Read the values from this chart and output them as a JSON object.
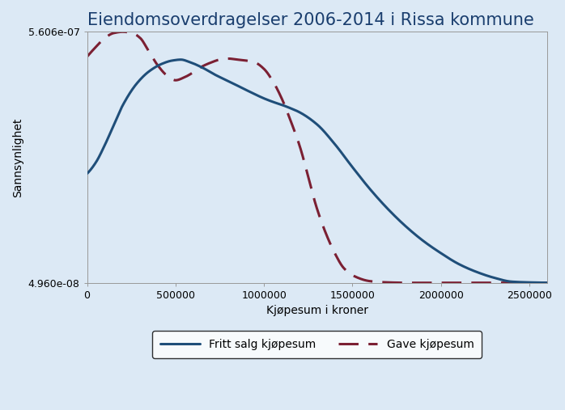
{
  "title": "Eiendomsoverdragelser 2006-2014 i Rissa kommune",
  "xlabel": "Kjøpesum i kroner",
  "ylabel": "Sannsynlighet",
  "background_color": "#dce9f5",
  "plot_bg_color": "#dce9f5",
  "ymin": 4.96e-08,
  "ymax": 5.606e-07,
  "xmin": 0,
  "xmax": 2600000,
  "line1_color": "#1f4e79",
  "line2_color": "#7b2033",
  "legend_line1": "Fritt salg kjøpesum",
  "legend_line2": "Gave kjøpesum",
  "title_fontsize": 15,
  "label_fontsize": 10,
  "fritt_salg_points_x": [
    0,
    50000,
    100000,
    150000,
    200000,
    280000,
    350000,
    420000,
    480000,
    530000,
    580000,
    650000,
    730000,
    800000,
    900000,
    1000000,
    1050000,
    1100000,
    1150000,
    1200000,
    1300000,
    1400000,
    1500000,
    1600000,
    1700000,
    1800000,
    1900000,
    2000000,
    2100000,
    2200000,
    2300000,
    2400000,
    2500000,
    2600000
  ],
  "fritt_salg_points_y": [
    2.72e-07,
    2.95e-07,
    3.3e-07,
    3.7e-07,
    4.1e-07,
    4.55e-07,
    4.8e-07,
    4.95e-07,
    5.02e-07,
    5.04e-07,
    4.99e-07,
    4.88e-07,
    4.72e-07,
    4.6e-07,
    4.42e-07,
    4.25e-07,
    4.18e-07,
    4.12e-07,
    4.05e-07,
    3.97e-07,
    3.72e-07,
    3.32e-07,
    2.85e-07,
    2.4e-07,
    2e-07,
    1.65e-07,
    1.35e-07,
    1.1e-07,
    8.8e-08,
    7.2e-08,
    6e-08,
    5.2e-08,
    5.05e-08,
    4.98e-08
  ],
  "gave_points_x": [
    0,
    50000,
    100000,
    150000,
    200000,
    250000,
    300000,
    350000,
    400000,
    450000,
    500000,
    550000,
    600000,
    650000,
    700000,
    750000,
    800000,
    850000,
    900000,
    950000,
    1000000,
    1050000,
    1100000,
    1150000,
    1200000,
    1300000,
    1350000,
    1400000,
    1450000,
    1500000,
    1600000,
    1700000,
    1800000,
    1900000,
    2000000,
    2100000,
    2200000,
    2300000,
    2400000,
    2500000,
    2600000
  ],
  "gave_points_y": [
    5.1e-07,
    5.3e-07,
    5.48e-07,
    5.58e-07,
    5.606e-07,
    5.59e-07,
    5.48e-07,
    5.2e-07,
    4.92e-07,
    4.72e-07,
    4.62e-07,
    4.68e-07,
    4.78e-07,
    4.9e-07,
    4.98e-07,
    5.04e-07,
    5.06e-07,
    5.04e-07,
    5.02e-07,
    4.98e-07,
    4.85e-07,
    4.6e-07,
    4.25e-07,
    3.8e-07,
    3.3e-07,
    2e-07,
    1.5e-07,
    1.1e-07,
    8e-08,
    6.5e-08,
    5.3e-08,
    5.05e-08,
    4.97e-08,
    4.965e-08,
    4.968e-08,
    4.972e-08,
    4.976e-08,
    4.978e-08,
    4.978e-08,
    4.978e-08,
    4.978e-08
  ]
}
